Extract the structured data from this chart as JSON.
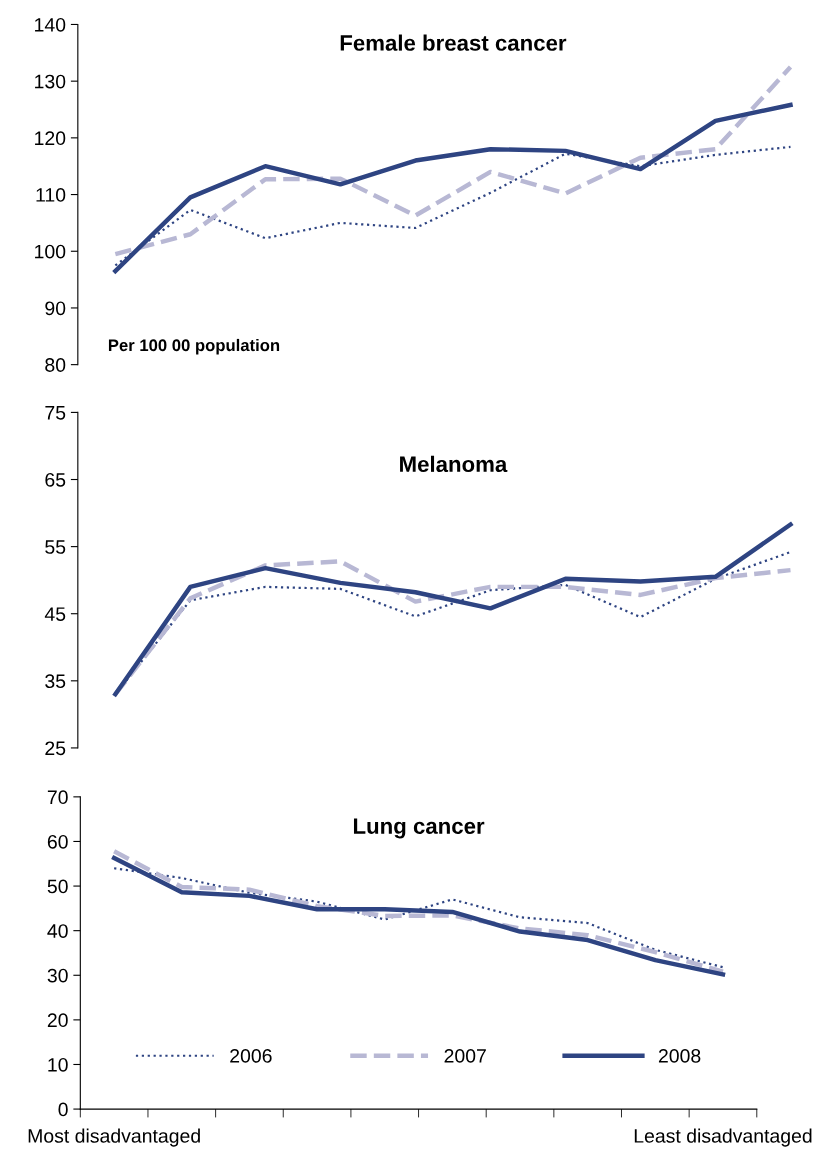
{
  "chart_data": [
    {
      "type": "line",
      "title": "Female breast cancer",
      "annotations": [
        "Per 100 00 population"
      ],
      "categories": [
        null,
        null,
        null,
        null,
        null,
        null,
        null,
        null,
        null,
        null
      ],
      "ylim": [
        80,
        140
      ],
      "yticks": [
        80,
        90,
        100,
        110,
        120,
        130,
        140
      ],
      "tick_labels": "y",
      "series": [
        {
          "color": "#2e4482",
          "line_style": "dotted",
          "values": [
            97.5,
            107.3,
            102.3,
            105,
            104.1,
            110.3,
            117.2,
            115,
            117,
            118.4
          ]
        },
        {
          "color": "#b8b8d4",
          "line_style": "dashed",
          "values": [
            99.5,
            103,
            112.7,
            112.8,
            106.3,
            114,
            110.2,
            116.5,
            118,
            132.5
          ]
        },
        {
          "color": "#2e4482",
          "line_style": "solid",
          "values": [
            96.5,
            109.5,
            115,
            111.8,
            116,
            118,
            117.7,
            114.5,
            123,
            125.8
          ]
        }
      ]
    },
    {
      "type": "line",
      "title": "Melanoma",
      "categories": [
        null,
        null,
        null,
        null,
        null,
        null,
        null,
        null,
        null,
        null
      ],
      "ylim": [
        25,
        75
      ],
      "yticks": [
        25,
        35,
        45,
        55,
        65,
        75
      ],
      "tick_labels": "y",
      "series": [
        {
          "color": "#2e4482",
          "line_style": "dotted",
          "values": [
            33,
            47,
            49,
            48.7,
            44.6,
            48.5,
            49.3,
            44.5,
            50.2,
            54.2
          ]
        },
        {
          "color": "#b8b8d4",
          "line_style": "dashed",
          "values": [
            33,
            47.3,
            52.2,
            52.8,
            46.8,
            49,
            49,
            47.8,
            50.3,
            51.5
          ]
        },
        {
          "color": "#2e4482",
          "line_style": "solid",
          "values": [
            33,
            49,
            51.8,
            49.6,
            48.2,
            45.8,
            50.2,
            49.8,
            50.5,
            58.3
          ]
        }
      ]
    },
    {
      "type": "line",
      "title": "Lung cancer",
      "categories": [
        "Most disadvantaged",
        null,
        null,
        null,
        null,
        null,
        null,
        null,
        null,
        "Least disadvantaged"
      ],
      "ylim": [
        0,
        70
      ],
      "yticks": [
        0,
        10,
        20,
        30,
        40,
        50,
        60,
        70
      ],
      "legend": "bottom",
      "series": [
        {
          "name": "2006",
          "color": "#2e4482",
          "line_style": "dotted",
          "values": [
            54,
            51.8,
            48.5,
            46.5,
            42.5,
            47,
            43,
            41.7,
            35.7,
            31.8
          ]
        },
        {
          "name": "2007",
          "color": "#b8b8d4",
          "line_style": "dashed",
          "values": [
            57.8,
            49.8,
            49.2,
            45.5,
            43.3,
            43.4,
            40.5,
            39,
            35.2,
            30.8
          ]
        },
        {
          "name": "2008",
          "color": "#2e4482",
          "line_style": "solid",
          "values": [
            56.3,
            48.6,
            47.8,
            44.8,
            44.8,
            44.2,
            39.8,
            37.9,
            33.4,
            30.2
          ]
        }
      ]
    }
  ]
}
